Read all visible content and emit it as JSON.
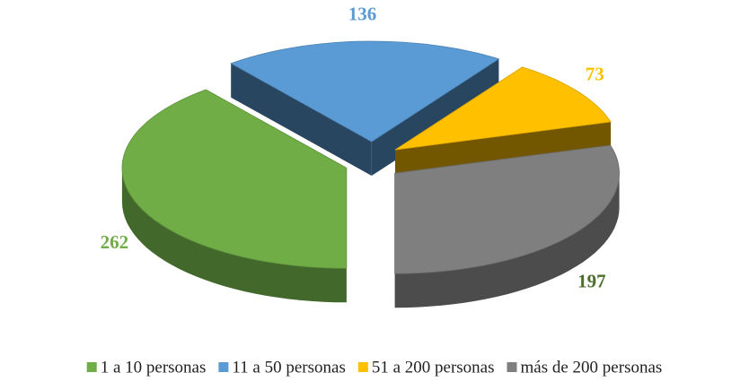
{
  "chart_data": {
    "type": "pie3d",
    "categories": [
      "1 a 10 personas",
      "11 a 50 personas",
      "51 a 200 personas",
      "más de 200 personas"
    ],
    "values": [
      262,
      136,
      73,
      197
    ],
    "colors": [
      "#70ad47",
      "#5b9bd5",
      "#ffc000",
      "#7f7f7f"
    ],
    "label_colors": [
      "#70ad47",
      "#5b9bd5",
      "#ffc000",
      "#4b6e2c"
    ],
    "legend": "bottom"
  }
}
